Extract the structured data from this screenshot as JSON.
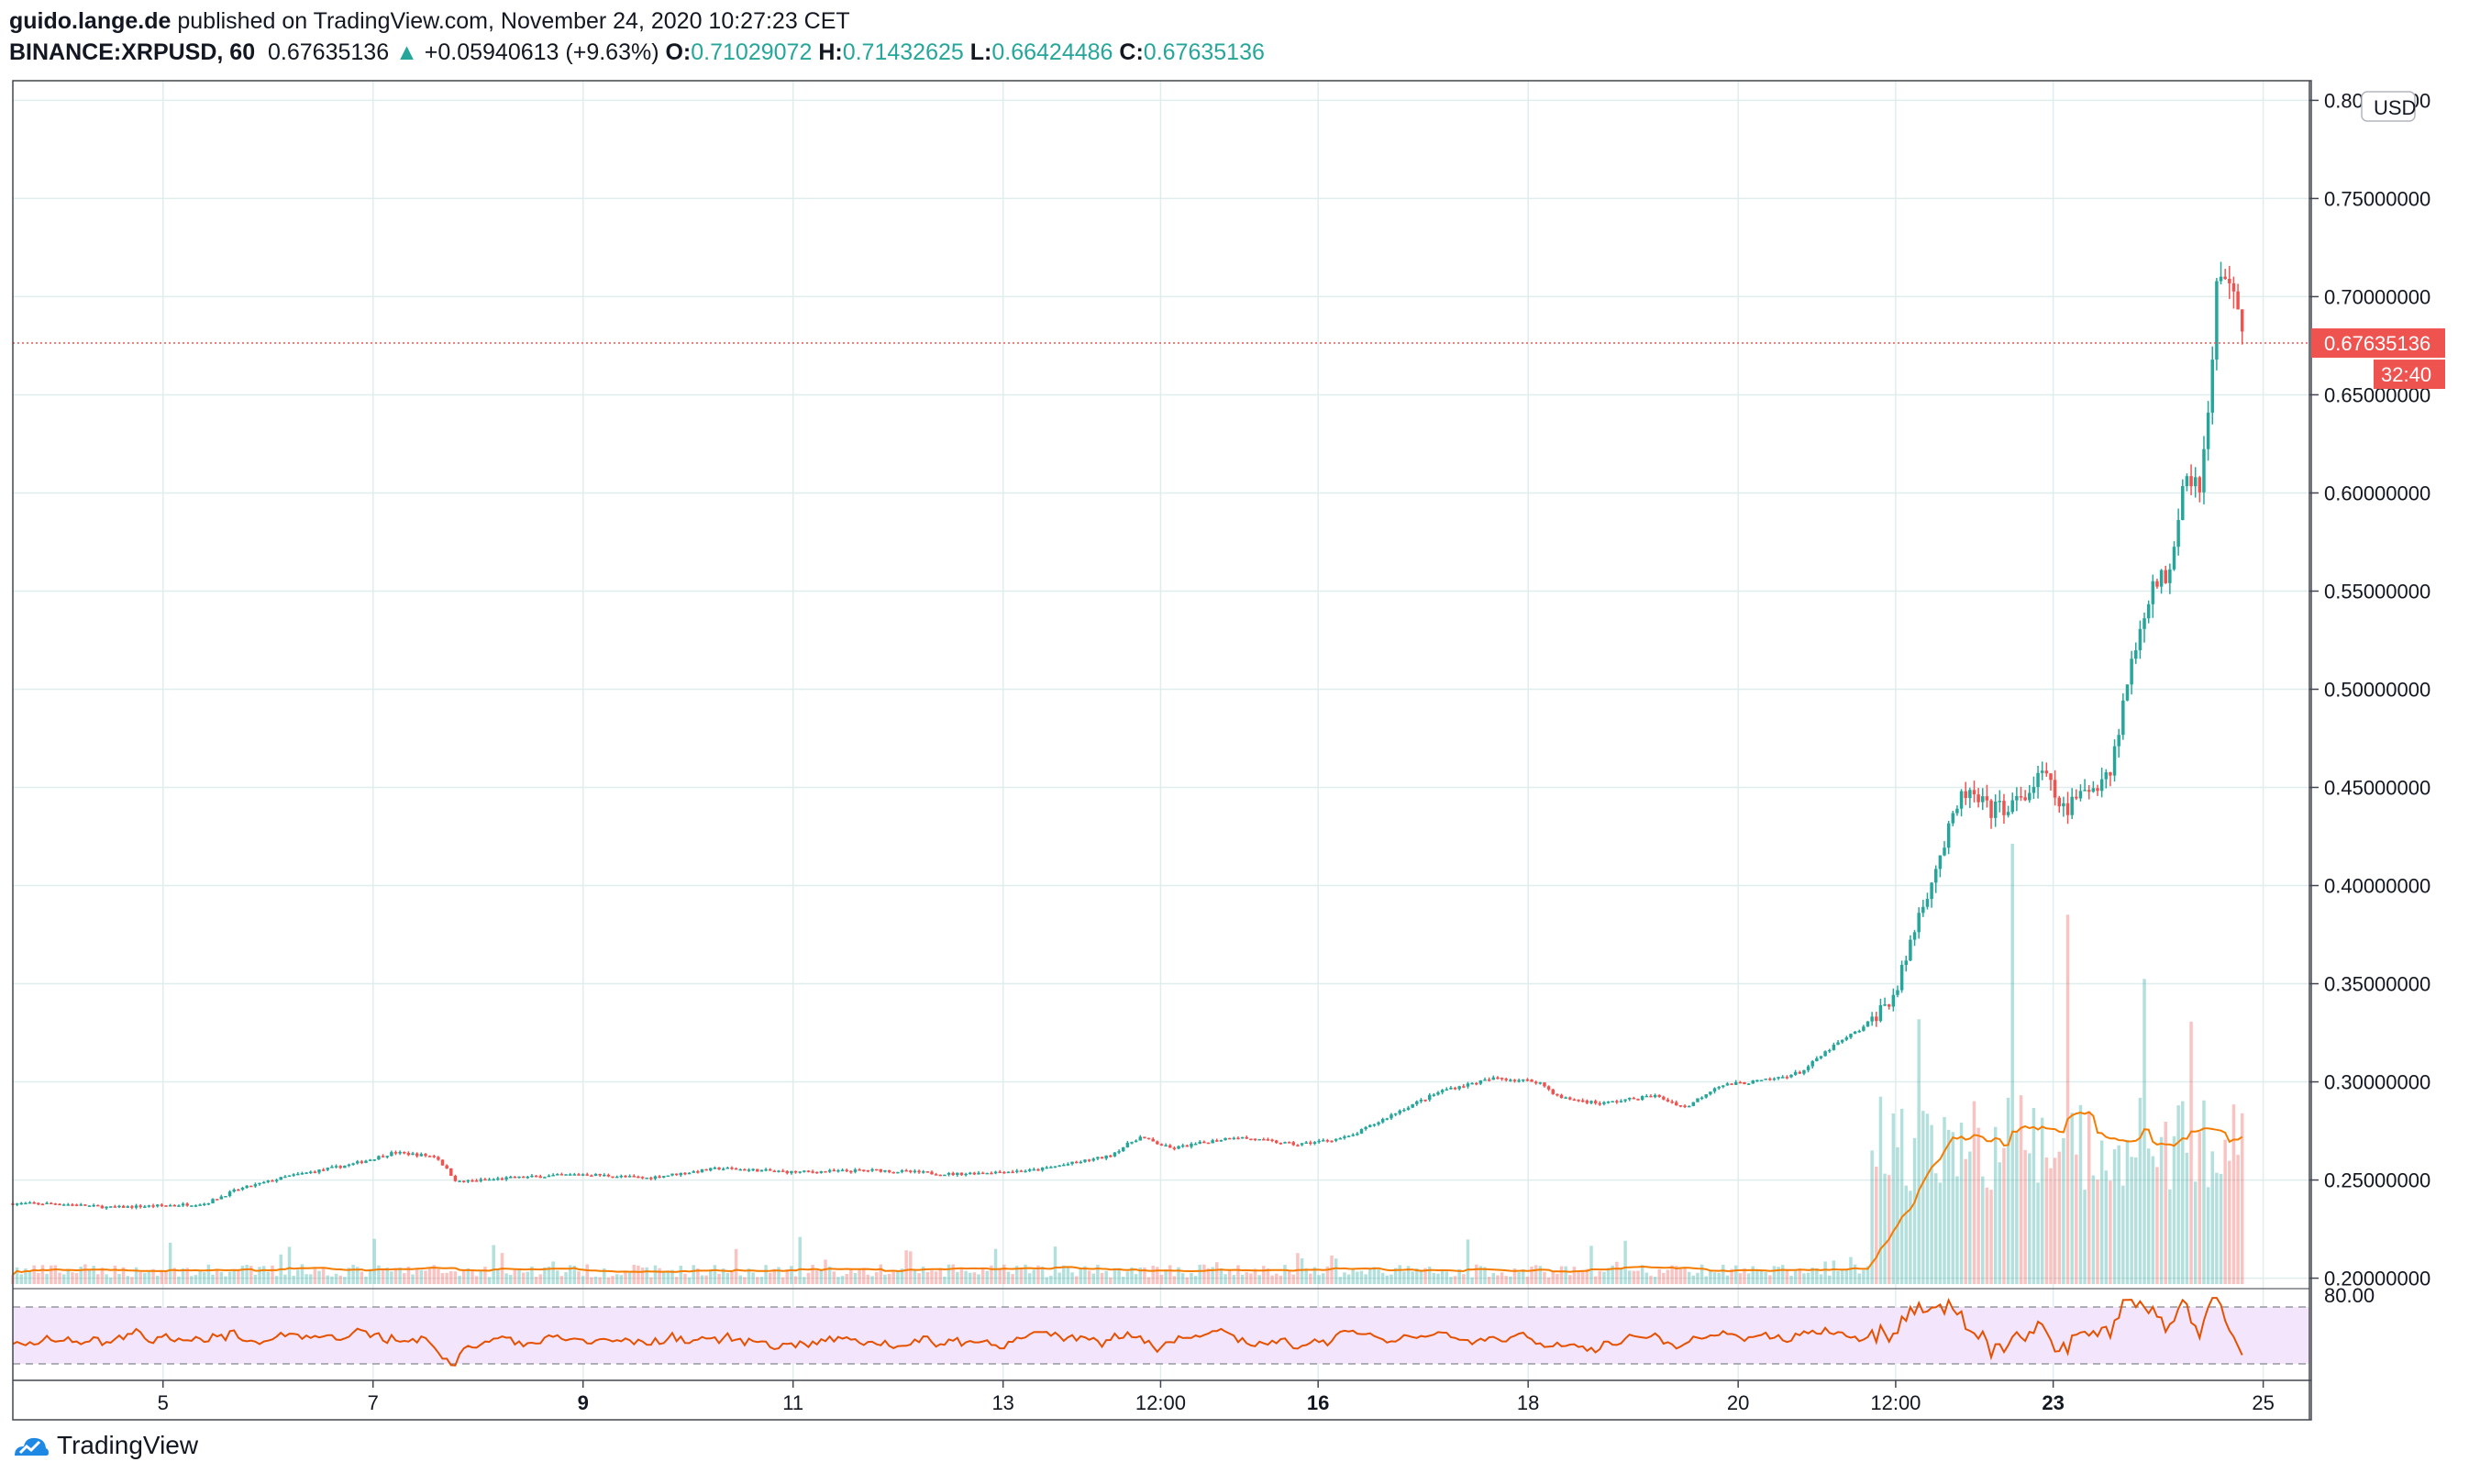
{
  "header": {
    "author": "guido.lange.de",
    "published": " published on TradingView.com, November 24, 2020 10:27:23 CET",
    "symbol": "BINANCE:XRPUSD, 60",
    "last": "0.67635136",
    "change": "+0.05940613 (+9.63%)",
    "o_label": "O:",
    "o_value": "0.71029072",
    "h_label": "H:",
    "h_value": "0.71432625",
    "l_label": "L:",
    "l_value": "0.66424486",
    "c_label": "C:",
    "c_value": "0.67635136"
  },
  "footer": {
    "brand": "TradingView"
  },
  "colors": {
    "up": "#26a69a",
    "down": "#ef5350",
    "ma": "#f57c00",
    "rsi": "#e65100",
    "rsi_band": "#f3e5fb",
    "grid": "#e0eded"
  },
  "chart_data": {
    "type": "candlestick",
    "currency_badge": "USD",
    "last_price_label": "0.67635136",
    "countdown_label": "32:40",
    "y_ticks": [
      "0.80000000",
      "0.75000000",
      "0.70000000",
      "0.65000000",
      "0.60000000",
      "0.55000000",
      "0.50000000",
      "0.45000000",
      "0.40000000",
      "0.35000000",
      "0.30000000",
      "0.25000000",
      "0.20000000"
    ],
    "ylim": [
      0.197,
      0.81
    ],
    "rsi_label": "80.00",
    "x_ticks": [
      {
        "label": "5",
        "day": 5.0,
        "bold": false
      },
      {
        "label": "7",
        "day": 7.0,
        "bold": false
      },
      {
        "label": "9",
        "day": 9.0,
        "bold": true
      },
      {
        "label": "11",
        "day": 11.0,
        "bold": false
      },
      {
        "label": "13",
        "day": 13.0,
        "bold": false
      },
      {
        "label": "12:00",
        "day": 14.5,
        "bold": false
      },
      {
        "label": "16",
        "day": 16.0,
        "bold": true
      },
      {
        "label": "18",
        "day": 18.0,
        "bold": false
      },
      {
        "label": "20",
        "day": 20.0,
        "bold": false
      },
      {
        "label": "12:00",
        "day": 21.5,
        "bold": false
      },
      {
        "label": "23",
        "day": 23.0,
        "bold": true
      },
      {
        "label": "25",
        "day": 25.0,
        "bold": false
      }
    ],
    "xlim_days": [
      3.57,
      25.44
    ],
    "price_path": [
      [
        3.57,
        0.238
      ],
      [
        4.0,
        0.238
      ],
      [
        4.5,
        0.236
      ],
      [
        5.0,
        0.237
      ],
      [
        5.4,
        0.238
      ],
      [
        5.7,
        0.245
      ],
      [
        6.2,
        0.252
      ],
      [
        6.8,
        0.258
      ],
      [
        7.2,
        0.264
      ],
      [
        7.6,
        0.262
      ],
      [
        7.8,
        0.249
      ],
      [
        8.3,
        0.251
      ],
      [
        9.0,
        0.253
      ],
      [
        9.6,
        0.251
      ],
      [
        10.3,
        0.256
      ],
      [
        11.0,
        0.254
      ],
      [
        11.8,
        0.255
      ],
      [
        12.5,
        0.253
      ],
      [
        13.3,
        0.255
      ],
      [
        14.0,
        0.262
      ],
      [
        14.3,
        0.272
      ],
      [
        14.6,
        0.266
      ],
      [
        15.2,
        0.272
      ],
      [
        15.8,
        0.268
      ],
      [
        16.3,
        0.272
      ],
      [
        16.8,
        0.286
      ],
      [
        17.2,
        0.296
      ],
      [
        17.7,
        0.302
      ],
      [
        18.1,
        0.3
      ],
      [
        18.3,
        0.292
      ],
      [
        18.7,
        0.289
      ],
      [
        19.2,
        0.293
      ],
      [
        19.5,
        0.287
      ],
      [
        19.8,
        0.298
      ],
      [
        20.3,
        0.301
      ],
      [
        20.6,
        0.305
      ],
      [
        20.9,
        0.318
      ],
      [
        21.2,
        0.328
      ],
      [
        21.5,
        0.345
      ],
      [
        21.7,
        0.382
      ],
      [
        21.9,
        0.412
      ],
      [
        22.15,
        0.448
      ],
      [
        22.4,
        0.438
      ],
      [
        22.7,
        0.443
      ],
      [
        22.9,
        0.457
      ],
      [
        23.1,
        0.438
      ],
      [
        23.4,
        0.452
      ],
      [
        23.55,
        0.46
      ],
      [
        23.7,
        0.502
      ],
      [
        23.9,
        0.548
      ],
      [
        24.1,
        0.56
      ],
      [
        24.25,
        0.612
      ],
      [
        24.4,
        0.605
      ],
      [
        24.5,
        0.65
      ],
      [
        24.55,
        0.705
      ],
      [
        24.7,
        0.712
      ],
      [
        24.8,
        0.676
      ]
    ]
  }
}
